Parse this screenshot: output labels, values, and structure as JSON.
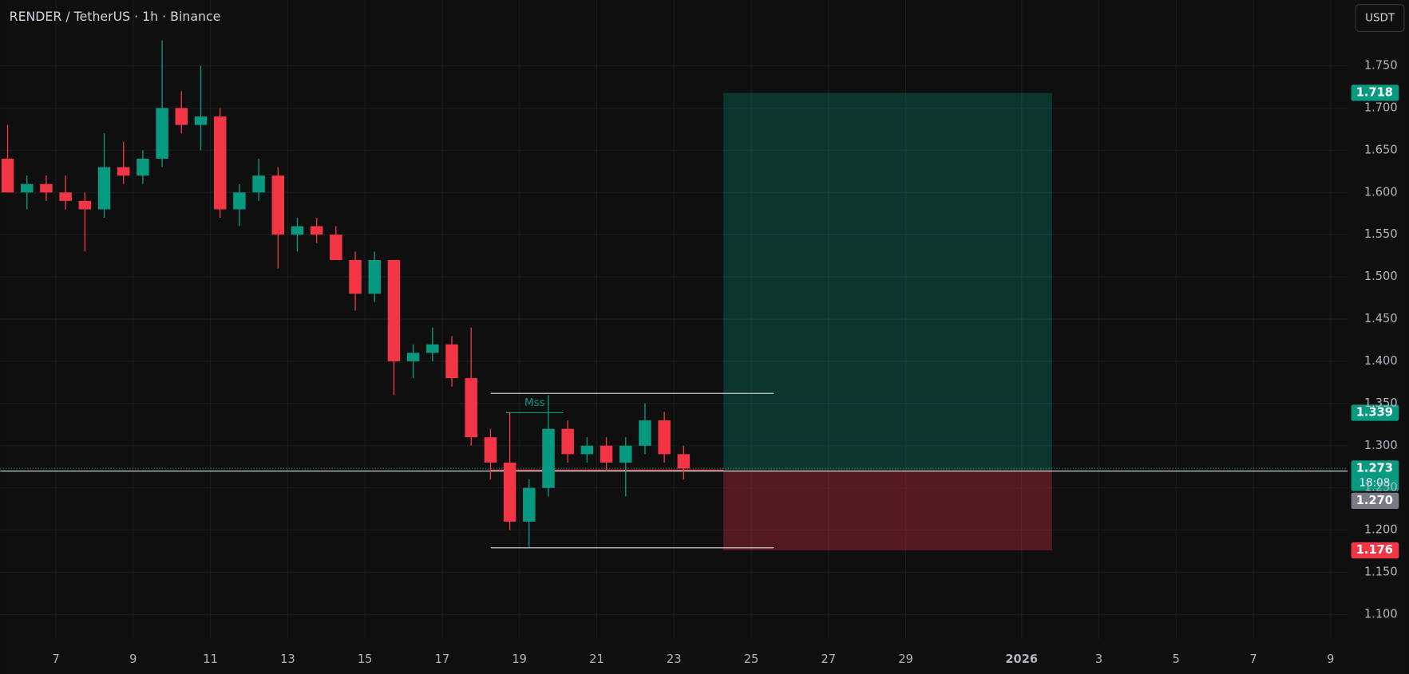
{
  "chart_data": {
    "type": "candlestick",
    "title": "RENDER / TetherUS · 1h · Binance",
    "currency": "USDT",
    "up_color": "#089981",
    "down_color": "#f23645",
    "grid": true,
    "xlim": [
      5.56,
      40.44
    ],
    "ylim": [
      1.071,
      1.828
    ],
    "xticks": [
      7,
      9,
      11,
      13,
      15,
      17,
      19,
      21,
      23,
      25,
      27,
      29,
      {
        "value": 32,
        "label": "2026"
      },
      {
        "value": 34,
        "label": "3"
      },
      {
        "value": 36,
        "label": "5"
      },
      {
        "value": 38,
        "label": "7"
      },
      {
        "value": 40,
        "label": "9"
      }
    ],
    "yticks": [
      {
        "value": 1.1,
        "label": "1.100"
      },
      {
        "value": 1.15,
        "label": "1.150"
      },
      {
        "value": 1.2,
        "label": "1.200"
      },
      {
        "value": 1.25,
        "label": "1.250"
      },
      {
        "value": 1.3,
        "label": "1.300"
      },
      {
        "value": 1.35,
        "label": "1.350"
      },
      {
        "value": 1.4,
        "label": "1.400"
      },
      {
        "value": 1.45,
        "label": "1.450"
      },
      {
        "value": 1.5,
        "label": "1.500"
      },
      {
        "value": 1.55,
        "label": "1.550"
      },
      {
        "value": 1.6,
        "label": "1.600"
      },
      {
        "value": 1.65,
        "label": "1.650"
      },
      {
        "value": 1.7,
        "label": "1.700"
      },
      {
        "value": 1.75,
        "label": "1.750"
      }
    ],
    "x": [
      5.75,
      6.25,
      6.75,
      7.25,
      7.75,
      8.25,
      8.75,
      9.25,
      9.75,
      10.25,
      10.75,
      11.25,
      11.75,
      12.25,
      12.75,
      13.25,
      13.75,
      14.25,
      14.75,
      15.25,
      15.75,
      16.25,
      16.75,
      17.25,
      17.75,
      18.25,
      18.75,
      19.25,
      19.75,
      20.25,
      20.75,
      21.25,
      21.75,
      22.25,
      22.75,
      23.25
    ],
    "open": [
      1.64,
      1.6,
      1.61,
      1.6,
      1.59,
      1.58,
      1.63,
      1.62,
      1.64,
      1.7,
      1.68,
      1.69,
      1.58,
      1.6,
      1.62,
      1.55,
      1.56,
      1.55,
      1.52,
      1.48,
      1.52,
      1.4,
      1.41,
      1.42,
      1.38,
      1.31,
      1.28,
      1.21,
      1.25,
      1.32,
      1.29,
      1.3,
      1.28,
      1.3,
      1.33,
      1.29
    ],
    "high": [
      1.68,
      1.62,
      1.62,
      1.62,
      1.6,
      1.67,
      1.66,
      1.65,
      1.78,
      1.72,
      1.75,
      1.7,
      1.61,
      1.64,
      1.63,
      1.57,
      1.57,
      1.56,
      1.53,
      1.53,
      1.52,
      1.42,
      1.44,
      1.43,
      1.44,
      1.32,
      1.34,
      1.26,
      1.36,
      1.33,
      1.31,
      1.31,
      1.31,
      1.35,
      1.34,
      1.3
    ],
    "low": [
      1.6,
      1.58,
      1.59,
      1.58,
      1.53,
      1.57,
      1.61,
      1.61,
      1.63,
      1.67,
      1.65,
      1.57,
      1.56,
      1.59,
      1.51,
      1.53,
      1.54,
      1.52,
      1.46,
      1.47,
      1.36,
      1.38,
      1.4,
      1.37,
      1.3,
      1.26,
      1.2,
      1.18,
      1.24,
      1.28,
      1.28,
      1.27,
      1.24,
      1.29,
      1.28,
      1.26
    ],
    "close": [
      1.6,
      1.61,
      1.6,
      1.59,
      1.58,
      1.63,
      1.62,
      1.64,
      1.7,
      1.68,
      1.69,
      1.58,
      1.6,
      1.62,
      1.55,
      1.56,
      1.55,
      1.52,
      1.48,
      1.52,
      1.4,
      1.41,
      1.42,
      1.38,
      1.31,
      1.28,
      1.21,
      1.25,
      1.32,
      1.29,
      1.3,
      1.28,
      1.3,
      1.33,
      1.29,
      1.273
    ],
    "position": {
      "x": [
        24.28,
        32.79
      ],
      "entry": 1.271,
      "target": 1.718,
      "stop": 1.176
    },
    "range_lines": {
      "x": [
        18.26,
        25.58
      ],
      "values": [
        1.362,
        1.179
      ]
    },
    "mss": {
      "label": "Mss",
      "x": [
        18.65,
        20.14
      ],
      "value": 1.339
    },
    "horizontal_line": {
      "value": 1.27,
      "label": "1.270"
    },
    "last_price": {
      "value": 1.273,
      "countdown": "18:08"
    }
  }
}
